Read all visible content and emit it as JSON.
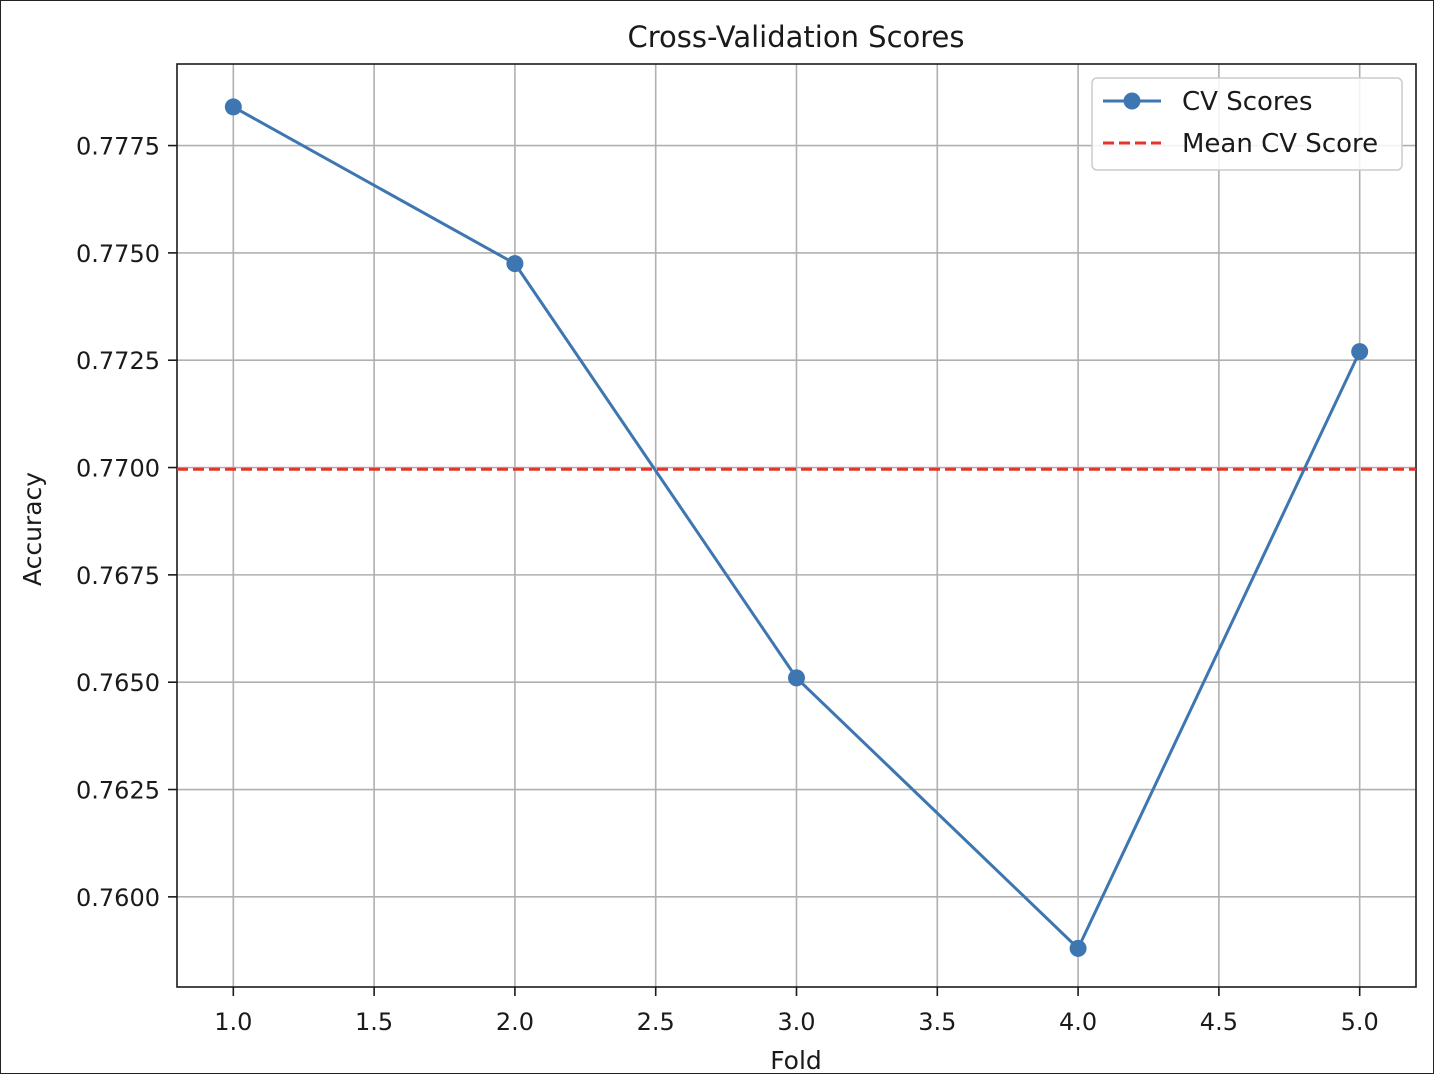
{
  "chart_data": {
    "type": "line",
    "title": "Cross-Validation Scores",
    "xlabel": "Fold",
    "ylabel": "Accuracy",
    "xlim": [
      0.8,
      5.2
    ],
    "ylim": [
      0.7579,
      0.7794
    ],
    "x_ticks": [
      1.0,
      1.5,
      2.0,
      2.5,
      3.0,
      3.5,
      4.0,
      4.5,
      5.0
    ],
    "x_tick_labels": [
      "1.0",
      "1.5",
      "2.0",
      "2.5",
      "3.0",
      "3.5",
      "4.0",
      "4.5",
      "5.0"
    ],
    "y_ticks": [
      0.76,
      0.7625,
      0.765,
      0.7675,
      0.77,
      0.7725,
      0.775,
      0.7775
    ],
    "y_tick_labels": [
      "0.7600",
      "0.7625",
      "0.7650",
      "0.7675",
      "0.7700",
      "0.7725",
      "0.7750",
      "0.7775"
    ],
    "grid": true,
    "legend_position": "top-right",
    "series": [
      {
        "name": "CV Scores",
        "x": [
          1,
          2,
          3,
          4,
          5
        ],
        "values": [
          0.7784,
          0.77475,
          0.7651,
          0.7588,
          0.7727
        ],
        "color": "#3d76b0",
        "marker": "circle",
        "linestyle": "solid"
      }
    ],
    "hlines": [
      {
        "name": "Mean CV Score",
        "y": 0.76996,
        "color": "#e8322a",
        "linestyle": "dashed"
      }
    ]
  }
}
